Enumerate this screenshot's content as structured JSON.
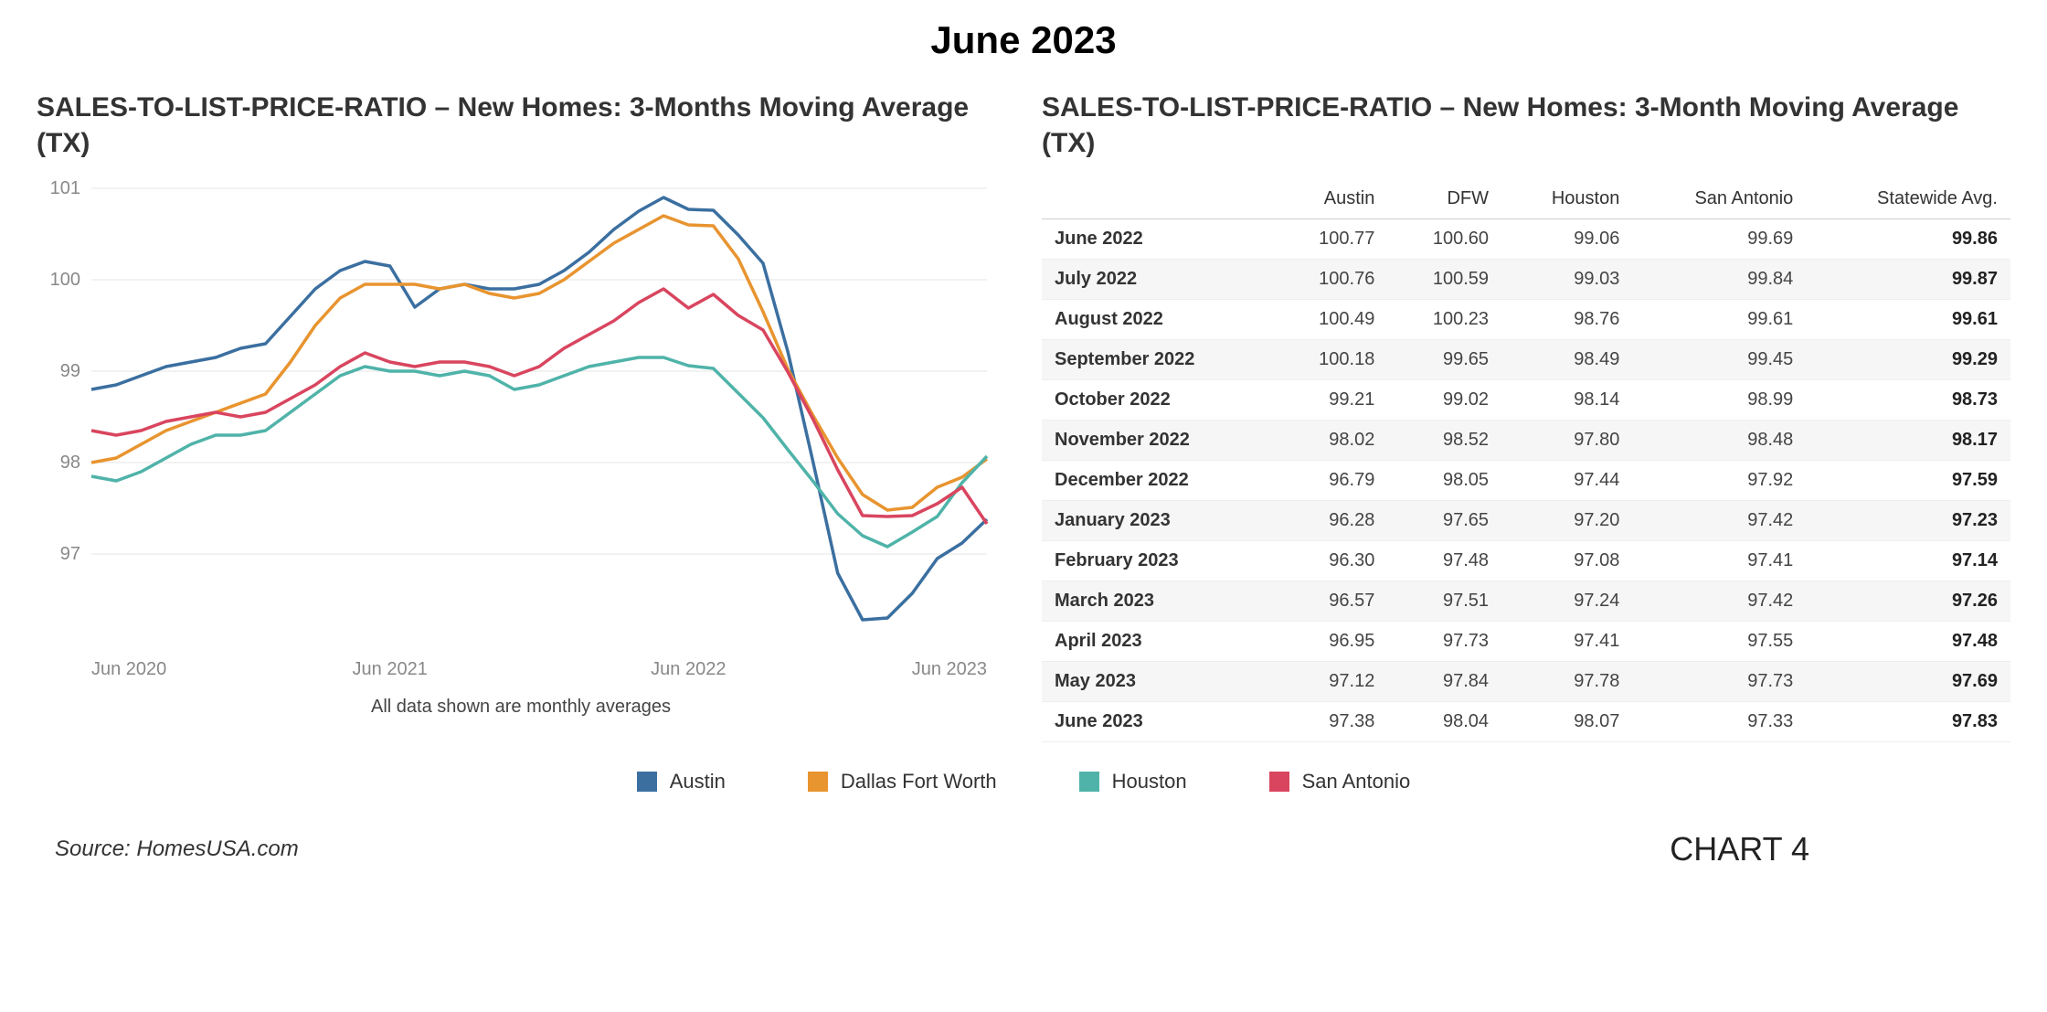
{
  "page_title": "June 2023",
  "chart": {
    "type": "line",
    "title": "SALES-TO-LIST-PRICE-RATIO – New Homes: 3-Months Moving Average (TX)",
    "caption": "All data shown are monthly averages",
    "background_color": "#ffffff",
    "grid_color": "#e5e5e5",
    "axis_label_color": "#888888",
    "axis_label_fontsize": 20,
    "title_fontsize": 30,
    "line_width": 3.5,
    "ylim": [
      96,
      101
    ],
    "yticks": [
      97,
      98,
      99,
      100,
      101
    ],
    "x_start": "Jun 2020",
    "x_end": "Jun 2023",
    "x_months_count": 37,
    "xticks": [
      {
        "index": 0,
        "label": "Jun 2020"
      },
      {
        "index": 12,
        "label": "Jun 2021"
      },
      {
        "index": 24,
        "label": "Jun 2022"
      },
      {
        "index": 36,
        "label": "Jun 2023"
      }
    ],
    "series": [
      {
        "name": "Austin",
        "color": "#3b6fa0",
        "values": [
          98.8,
          98.85,
          98.95,
          99.05,
          99.1,
          99.15,
          99.25,
          99.3,
          99.6,
          99.9,
          100.1,
          100.2,
          100.15,
          99.7,
          99.9,
          99.95,
          99.9,
          99.9,
          99.95,
          100.1,
          100.3,
          100.55,
          100.75,
          100.9,
          100.77,
          100.76,
          100.49,
          100.18,
          99.21,
          98.02,
          96.79,
          96.28,
          96.3,
          96.57,
          96.95,
          97.12,
          97.38
        ]
      },
      {
        "name": "Dallas Fort Worth",
        "color": "#e8942f",
        "values": [
          98.0,
          98.05,
          98.2,
          98.35,
          98.45,
          98.55,
          98.65,
          98.75,
          99.1,
          99.5,
          99.8,
          99.95,
          99.95,
          99.95,
          99.9,
          99.95,
          99.85,
          99.8,
          99.85,
          100.0,
          100.2,
          100.4,
          100.55,
          100.7,
          100.6,
          100.59,
          100.23,
          99.65,
          99.02,
          98.52,
          98.05,
          97.65,
          97.48,
          97.51,
          97.73,
          97.84,
          98.04
        ]
      },
      {
        "name": "Houston",
        "color": "#4fb3a9",
        "values": [
          97.85,
          97.8,
          97.9,
          98.05,
          98.2,
          98.3,
          98.3,
          98.35,
          98.55,
          98.75,
          98.95,
          99.05,
          99.0,
          99.0,
          98.95,
          99.0,
          98.95,
          98.8,
          98.85,
          98.95,
          99.05,
          99.1,
          99.15,
          99.15,
          99.06,
          99.03,
          98.76,
          98.49,
          98.14,
          97.8,
          97.44,
          97.2,
          97.08,
          97.24,
          97.41,
          97.78,
          98.07
        ]
      },
      {
        "name": "San Antonio",
        "color": "#d9455f",
        "values": [
          98.35,
          98.3,
          98.35,
          98.45,
          98.5,
          98.55,
          98.5,
          98.55,
          98.7,
          98.85,
          99.05,
          99.2,
          99.1,
          99.05,
          99.1,
          99.1,
          99.05,
          98.95,
          99.05,
          99.25,
          99.4,
          99.55,
          99.75,
          99.9,
          99.69,
          99.84,
          99.61,
          99.45,
          98.99,
          98.48,
          97.92,
          97.42,
          97.41,
          97.42,
          97.55,
          97.73,
          97.33
        ]
      }
    ]
  },
  "table": {
    "title": "SALES-TO-LIST-PRICE-RATIO – New Homes:  3-Month Moving Average (TX)",
    "columns": [
      "",
      "Austin",
      "DFW",
      "Houston",
      "San Antonio",
      "Statewide Avg."
    ],
    "header_fontsize": 20,
    "cell_fontsize": 20,
    "row_stripe_color": "#f6f6f6",
    "border_color": "#eeeeee",
    "rows": [
      [
        "June 2022",
        "100.77",
        "100.60",
        "99.06",
        "99.69",
        "99.86"
      ],
      [
        "July 2022",
        "100.76",
        "100.59",
        "99.03",
        "99.84",
        "99.87"
      ],
      [
        "August 2022",
        "100.49",
        "100.23",
        "98.76",
        "99.61",
        "99.61"
      ],
      [
        "September 2022",
        "100.18",
        "99.65",
        "98.49",
        "99.45",
        "99.29"
      ],
      [
        "October 2022",
        "99.21",
        "99.02",
        "98.14",
        "98.99",
        "98.73"
      ],
      [
        "November 2022",
        "98.02",
        "98.52",
        "97.80",
        "98.48",
        "98.17"
      ],
      [
        "December 2022",
        "96.79",
        "98.05",
        "97.44",
        "97.92",
        "97.59"
      ],
      [
        "January 2023",
        "96.28",
        "97.65",
        "97.20",
        "97.42",
        "97.23"
      ],
      [
        "February 2023",
        "96.30",
        "97.48",
        "97.08",
        "97.41",
        "97.14"
      ],
      [
        "March 2023",
        "96.57",
        "97.51",
        "97.24",
        "97.42",
        "97.26"
      ],
      [
        "April 2023",
        "96.95",
        "97.73",
        "97.41",
        "97.55",
        "97.48"
      ],
      [
        "May 2023",
        "97.12",
        "97.84",
        "97.78",
        "97.73",
        "97.69"
      ],
      [
        "June 2023",
        "97.38",
        "98.04",
        "98.07",
        "97.33",
        "97.83"
      ]
    ]
  },
  "legend": {
    "items": [
      {
        "label": "Austin",
        "color": "#3b6fa0"
      },
      {
        "label": "Dallas Fort Worth",
        "color": "#e8942f"
      },
      {
        "label": "Houston",
        "color": "#4fb3a9"
      },
      {
        "label": "San Antonio",
        "color": "#d9455f"
      }
    ],
    "swatch_size": 22,
    "fontsize": 22
  },
  "footer": {
    "source": "Source: HomesUSA.com",
    "chart_number": "CHART 4"
  }
}
